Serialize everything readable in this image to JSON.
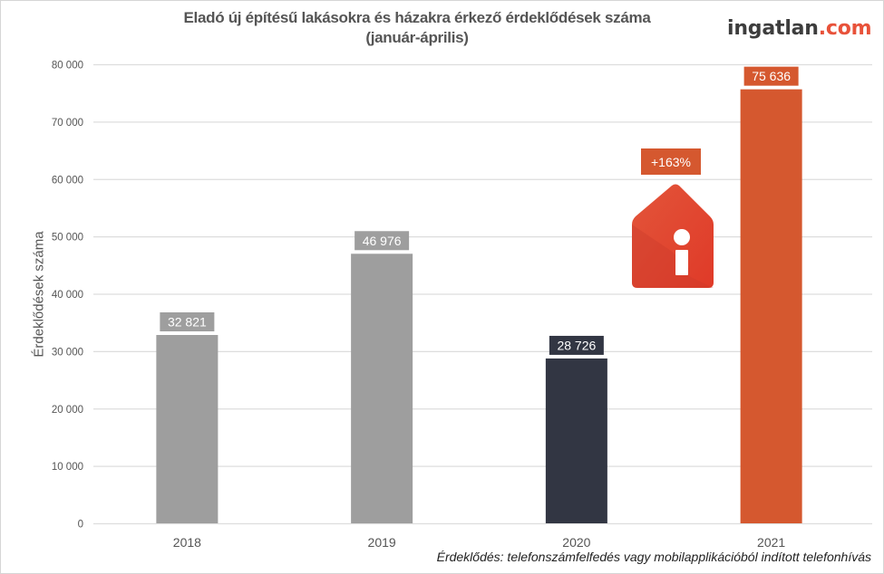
{
  "header": {
    "title_line1": "Eladó új építésű lakásokra és házakra érkező érdeklődések száma",
    "title_line2": "(január-április)",
    "logo_main": "ingatlan",
    "logo_tld": ".com"
  },
  "footnote": "Érdeklődés: telefonszámfelfedés vagy mobilapplikációból indított telefonhívás",
  "badge": {
    "text": "+163%",
    "icon": "house-info-icon"
  },
  "colors": {
    "grey_bar": "#9e9e9e",
    "dark_bar": "#323643",
    "accent_bar": "#d5582f",
    "brand_red": "#e8523a",
    "grid": "#dddddd",
    "text": "#555555"
  },
  "chart_data": {
    "type": "bar",
    "title": "Eladó új építésű lakásokra és házakra érkező érdeklődések száma (január-április)",
    "xlabel": "",
    "ylabel": "Érdeklődések száma",
    "categories": [
      "2018",
      "2019",
      "2020",
      "2021"
    ],
    "values": [
      32821,
      46976,
      28726,
      75636
    ],
    "data_labels": [
      "32 821",
      "46 976",
      "28 726",
      "75 636"
    ],
    "bar_colors": [
      "#9e9e9e",
      "#9e9e9e",
      "#323643",
      "#d5582f"
    ],
    "ylim": [
      0,
      80000
    ],
    "yticks": [
      0,
      10000,
      20000,
      30000,
      40000,
      50000,
      60000,
      70000,
      80000
    ],
    "ytick_labels": [
      "0",
      "10 000",
      "20 000",
      "30 000",
      "40 000",
      "50 000",
      "60 000",
      "70 000",
      "80 000"
    ],
    "grid": true,
    "legend": "none",
    "annotations": [
      "+163%"
    ]
  }
}
